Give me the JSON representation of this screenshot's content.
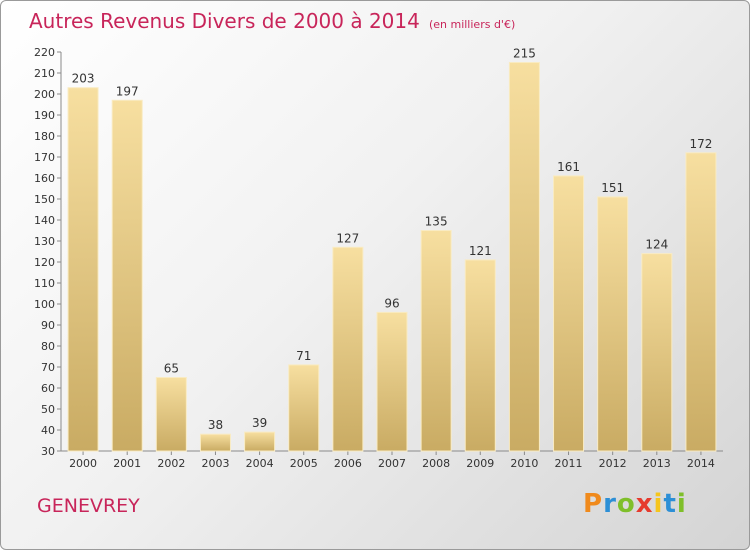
{
  "title": "Autres Revenus Divers de 2000 à 2014",
  "subtitle": "(en milliers d'€)",
  "place": "GENEVREY",
  "logo": {
    "text": "Proxiti",
    "colors": [
      "#f08a1c",
      "#2c8fd6",
      "#7fbf2a",
      "#e63b2e",
      "#f5c51c",
      "#2c8fd6",
      "#7fbf2a"
    ]
  },
  "colors": {
    "title": "#c8255a",
    "bar_light": "#f7dfa0",
    "bar_dark": "#c9ab63"
  },
  "chart_data": {
    "type": "bar",
    "title": "Autres Revenus Divers de 2000 à 2014",
    "subtitle": "(en milliers d'€)",
    "categories": [
      "2000",
      "2001",
      "2002",
      "2003",
      "2004",
      "2005",
      "2006",
      "2007",
      "2008",
      "2009",
      "2010",
      "2011",
      "2012",
      "2013",
      "2014"
    ],
    "values": [
      203,
      197,
      65,
      38,
      39,
      71,
      127,
      96,
      135,
      121,
      215,
      161,
      151,
      124,
      172
    ],
    "ylim": [
      30,
      220
    ],
    "ytick_step": 10,
    "grid": false,
    "legend": "none"
  }
}
